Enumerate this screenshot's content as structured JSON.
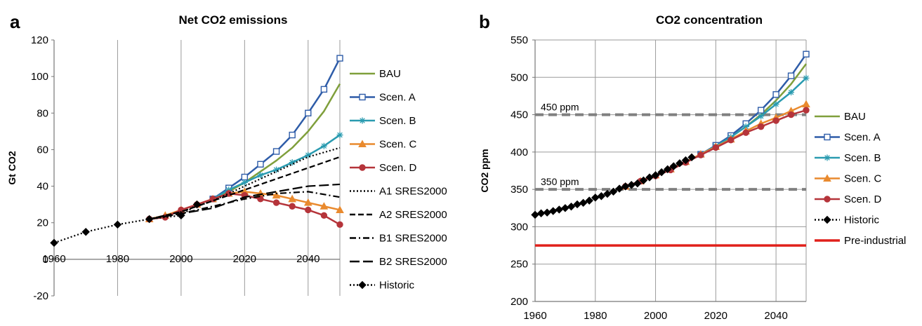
{
  "chart_data": [
    {
      "panel_label": "a",
      "type": "line",
      "title": "Net CO2 emissions",
      "ylabel": "Gt CO2",
      "xlabel": "",
      "xlim": [
        1960,
        2050
      ],
      "ylim": [
        -20,
        120
      ],
      "xticks": [
        1960,
        1980,
        2000,
        2020,
        2040
      ],
      "yticks": [
        -20,
        0,
        20,
        40,
        60,
        80,
        100,
        120
      ],
      "grid": "vertical",
      "legend_position": "right",
      "series": [
        {
          "name": "BAU",
          "color": "#7F9F3B",
          "style": "solid",
          "marker": "none",
          "x": [
            2010,
            2015,
            2020,
            2025,
            2030,
            2035,
            2040,
            2045,
            2050
          ],
          "y": [
            33,
            37,
            42,
            48,
            54,
            61,
            70,
            81,
            96
          ]
        },
        {
          "name": "Scen. A",
          "color": "#2E5CA8",
          "style": "solid",
          "marker": "square",
          "x": [
            2010,
            2015,
            2020,
            2025,
            2030,
            2035,
            2040,
            2045,
            2050
          ],
          "y": [
            33,
            39,
            45,
            52,
            59,
            68,
            80,
            93,
            110
          ]
        },
        {
          "name": "Scen. B",
          "color": "#2A9BB0",
          "style": "solid",
          "marker": "star",
          "x": [
            2010,
            2015,
            2020,
            2025,
            2030,
            2035,
            2040,
            2045,
            2050
          ],
          "y": [
            33,
            38,
            42,
            46,
            49,
            53,
            57,
            62,
            68
          ]
        },
        {
          "name": "Scen. C",
          "color": "#E98A2E",
          "style": "solid",
          "marker": "triangle",
          "x": [
            1990,
            1995,
            2000,
            2005,
            2010,
            2015,
            2020,
            2025,
            2030,
            2035,
            2040,
            2045,
            2050
          ],
          "y": [
            22,
            24,
            27,
            30,
            33,
            36,
            37,
            36,
            35,
            33,
            31,
            29,
            27
          ]
        },
        {
          "name": "Scen. D",
          "color": "#B5343A",
          "style": "solid",
          "marker": "circle",
          "x": [
            1990,
            1995,
            2000,
            2005,
            2010,
            2015,
            2020,
            2025,
            2030,
            2035,
            2040,
            2045,
            2050
          ],
          "y": [
            22,
            23,
            27,
            30,
            33,
            36,
            35,
            33,
            31,
            29,
            27,
            24,
            19
          ]
        },
        {
          "name": "A1 SRES2000",
          "color": "#000000",
          "style": "dotted",
          "marker": "none",
          "x": [
            1990,
            2000,
            2010,
            2020,
            2030,
            2040,
            2050
          ],
          "y": [
            22,
            26,
            32,
            40,
            48,
            56,
            61
          ]
        },
        {
          "name": "A2 SRES2000",
          "color": "#000000",
          "style": "dashed",
          "marker": "none",
          "x": [
            1990,
            2000,
            2010,
            2020,
            2030,
            2040,
            2050
          ],
          "y": [
            22,
            26,
            32,
            38,
            44,
            50,
            56
          ]
        },
        {
          "name": "B1 SRES2000",
          "color": "#000000",
          "style": "dashdot",
          "marker": "none",
          "x": [
            1990,
            2000,
            2010,
            2020,
            2030,
            2040,
            2050
          ],
          "y": [
            22,
            25,
            29,
            33,
            36,
            37,
            34
          ]
        },
        {
          "name": "B2 SRES2000",
          "color": "#000000",
          "style": "longdash",
          "marker": "none",
          "x": [
            1990,
            2000,
            2010,
            2020,
            2030,
            2040,
            2050
          ],
          "y": [
            22,
            25,
            28,
            34,
            37,
            40,
            41
          ]
        },
        {
          "name": "Historic",
          "color": "#000000",
          "style": "dotted",
          "marker": "diamond",
          "x": [
            1960,
            1970,
            1980,
            1990,
            2000,
            2005
          ],
          "y": [
            9,
            15,
            19,
            22,
            24,
            30
          ]
        }
      ]
    },
    {
      "panel_label": "b",
      "type": "line",
      "title": "CO2 concentration",
      "ylabel": "CO2 ppm",
      "xlabel": "",
      "xlim": [
        1960,
        2050
      ],
      "ylim": [
        200,
        550
      ],
      "xticks": [
        1960,
        1980,
        2000,
        2020,
        2040
      ],
      "yticks": [
        200,
        250,
        300,
        350,
        400,
        450,
        500,
        550
      ],
      "grid": "both",
      "legend_position": "right",
      "reference_lines": [
        {
          "label": "450 ppm",
          "y": 450,
          "color": "#808080",
          "style": "dashed"
        },
        {
          "label": "350 ppm",
          "y": 350,
          "color": "#808080",
          "style": "dashed"
        }
      ],
      "series": [
        {
          "name": "BAU",
          "color": "#7F9F3B",
          "style": "solid",
          "marker": "none",
          "x": [
            2015,
            2020,
            2025,
            2030,
            2035,
            2040,
            2045,
            2050
          ],
          "y": [
            397,
            408,
            420,
            434,
            450,
            469,
            491,
            518
          ]
        },
        {
          "name": "Scen. A",
          "color": "#2E5CA8",
          "style": "solid",
          "marker": "square",
          "x": [
            2015,
            2020,
            2025,
            2030,
            2035,
            2040,
            2045,
            2050
          ],
          "y": [
            397,
            409,
            422,
            438,
            456,
            477,
            502,
            531
          ]
        },
        {
          "name": "Scen. B",
          "color": "#2A9BB0",
          "style": "solid",
          "marker": "star",
          "x": [
            2015,
            2020,
            2025,
            2030,
            2035,
            2040,
            2045,
            2050
          ],
          "y": [
            397,
            408,
            420,
            434,
            448,
            464,
            480,
            499
          ]
        },
        {
          "name": "Scen. C",
          "color": "#E98A2E",
          "style": "solid",
          "marker": "triangle",
          "x": [
            1990,
            1995,
            2000,
            2005,
            2010,
            2015,
            2020,
            2025,
            2030,
            2035,
            2040,
            2045,
            2050
          ],
          "y": [
            354,
            361,
            369,
            377,
            387,
            397,
            407,
            417,
            428,
            438,
            446,
            455,
            464
          ]
        },
        {
          "name": "Scen. D",
          "color": "#B5343A",
          "style": "solid",
          "marker": "circle",
          "x": [
            1990,
            1995,
            2000,
            2005,
            2010,
            2015,
            2020,
            2025,
            2030,
            2035,
            2040,
            2045,
            2050
          ],
          "y": [
            354,
            361,
            368,
            376,
            386,
            396,
            406,
            416,
            426,
            434,
            442,
            450,
            456
          ]
        },
        {
          "name": "Historic",
          "color": "#000000",
          "style": "dotted",
          "marker": "diamond",
          "x": [
            1960,
            1962,
            1964,
            1966,
            1968,
            1970,
            1972,
            1974,
            1976,
            1978,
            1980,
            1982,
            1984,
            1986,
            1988,
            1990,
            1992,
            1994,
            1996,
            1998,
            2000,
            2002,
            2004,
            2006,
            2008,
            2010,
            2012
          ],
          "y": [
            316,
            318,
            319,
            321,
            323,
            325,
            327,
            330,
            332,
            335,
            339,
            341,
            344,
            347,
            351,
            354,
            356,
            358,
            362,
            366,
            369,
            373,
            377,
            381,
            385,
            389,
            393
          ]
        },
        {
          "name": "Pre-industrial",
          "color": "#E0201B",
          "style": "solid",
          "marker": "none",
          "x": [
            1960,
            2050
          ],
          "y": [
            275,
            275
          ]
        }
      ]
    }
  ]
}
